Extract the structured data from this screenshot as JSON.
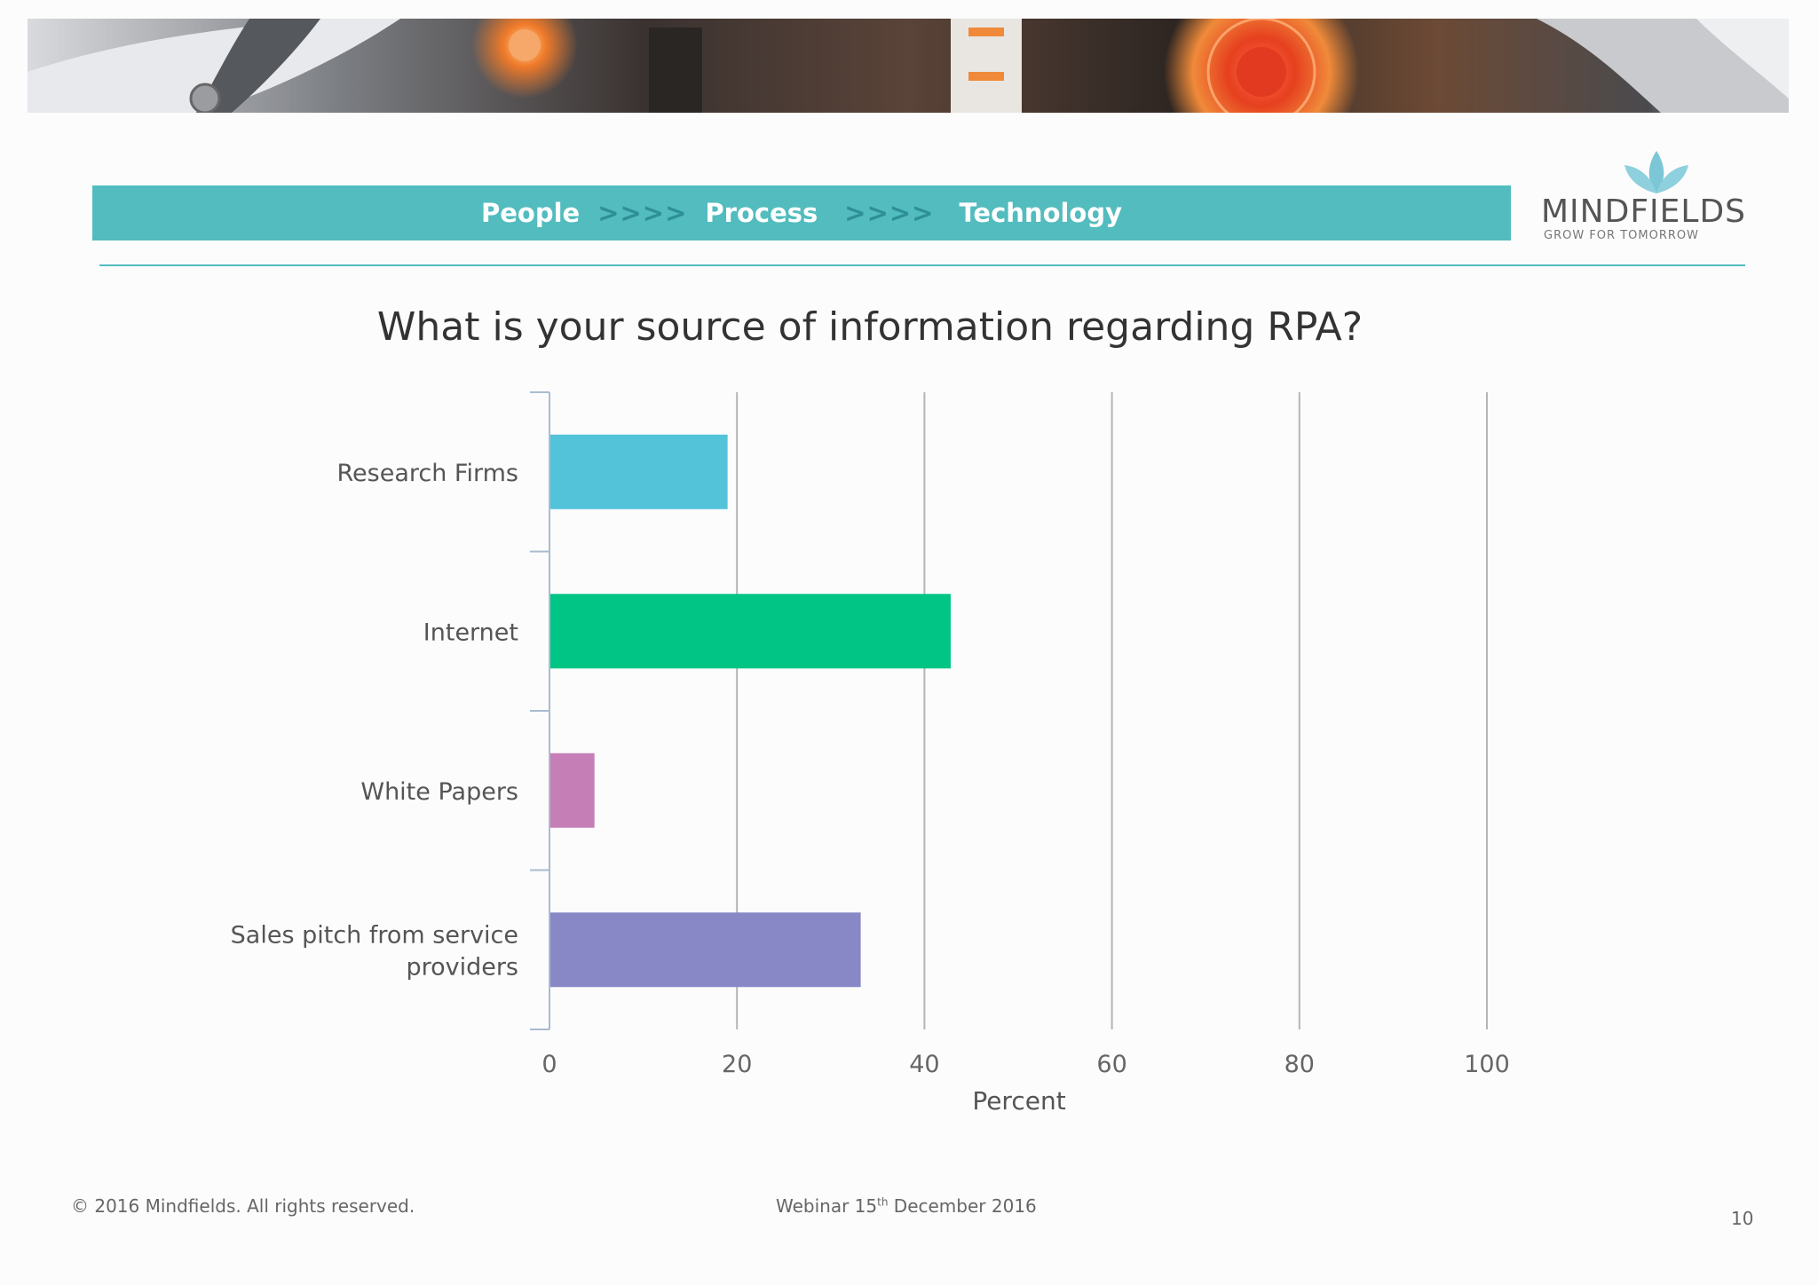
{
  "header": {
    "tagline": {
      "word1": "People",
      "sep1": ">>>>",
      "word2": "Process",
      "sep2": ">>>>",
      "word3": "Technology"
    },
    "logo": {
      "name": "MINDFIELDS",
      "tagline": "GROW FOR TOMORROW",
      "icon": "lotus-icon"
    }
  },
  "colors": {
    "accent": "#52bcbe",
    "research": "#53c3d9",
    "internet": "#00c584",
    "whitepapers": "#c67fb6",
    "sales": "#8888c6"
  },
  "chart_data": {
    "type": "bar",
    "orientation": "horizontal",
    "title": "What is your source of information regarding RPA?",
    "categories": [
      "Research Firms",
      "Internet",
      "White Papers",
      "Sales pitch from service providers"
    ],
    "category_lines": [
      [
        "Research Firms"
      ],
      [
        "Internet"
      ],
      [
        "White Papers"
      ],
      [
        "Sales pitch from service",
        "providers"
      ]
    ],
    "values": [
      19,
      42.8,
      4.8,
      33.2
    ],
    "xlabel": "Percent",
    "ylabel": "",
    "xlim": [
      0,
      100
    ],
    "xticks": [
      "0",
      "20",
      "40",
      "60",
      "80",
      "100"
    ],
    "grid": true
  },
  "footer": {
    "copyright": "© 2016  Mindfields. All rights reserved.",
    "webinar_prefix": "Webinar 15",
    "webinar_sup": "th",
    "webinar_suffix": " December 2016",
    "page_number": "10"
  }
}
